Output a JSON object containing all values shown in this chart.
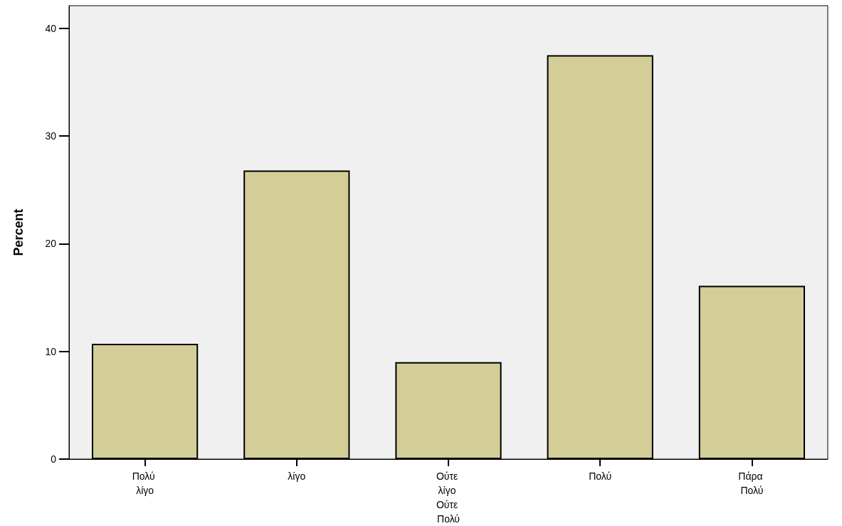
{
  "chart_data": {
    "type": "bar",
    "ylabel": "Percent",
    "categories": [
      "Πολύ λίγο",
      "λίγο",
      "Ούτε λίγο Ούτε Πολύ",
      "Πολύ",
      "Πάρα Πολύ"
    ],
    "values": [
      10.7,
      26.8,
      9.0,
      37.5,
      16.1
    ],
    "color": "#d3ce97",
    "ylim": [
      0,
      42.1
    ],
    "yticks": [
      0,
      10,
      20,
      30,
      40
    ],
    "grid": false
  }
}
